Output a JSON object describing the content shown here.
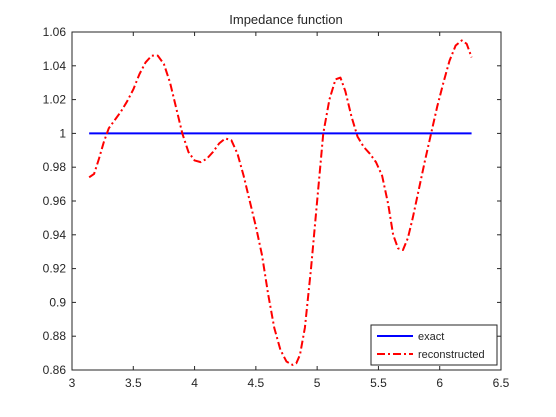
{
  "chart_data": {
    "type": "line",
    "title": "Impedance function",
    "xlabel": "",
    "ylabel": "",
    "xlim": [
      3,
      6.5
    ],
    "ylim": [
      0.86,
      1.06
    ],
    "xticks": [
      3,
      3.5,
      4,
      4.5,
      5,
      5.5,
      6,
      6.5
    ],
    "yticks": [
      0.86,
      0.88,
      0.9,
      0.92,
      0.94,
      0.96,
      0.98,
      1,
      1.02,
      1.04,
      1.06
    ],
    "xtick_labels": [
      "3",
      "3.5",
      "4",
      "4.5",
      "5",
      "5.5",
      "6",
      "6.5"
    ],
    "ytick_labels": [
      "0.86",
      "0.88",
      "0.9",
      "0.92",
      "0.94",
      "0.96",
      "0.98",
      "1",
      "1.02",
      "1.04",
      "1.06"
    ],
    "grid": false,
    "legend_position": "bottom-right",
    "series": [
      {
        "name": "exact",
        "color": "#0000ff",
        "style": "solid",
        "x": [
          3.14,
          6.26
        ],
        "y": [
          1.0,
          1.0
        ]
      },
      {
        "name": "reconstructed",
        "color": "#ff0000",
        "style": "dashdot",
        "x": [
          3.14,
          3.18,
          3.22,
          3.26,
          3.3,
          3.35,
          3.4,
          3.45,
          3.5,
          3.55,
          3.6,
          3.65,
          3.7,
          3.75,
          3.8,
          3.85,
          3.9,
          3.95,
          4.0,
          4.05,
          4.1,
          4.15,
          4.2,
          4.25,
          4.3,
          4.35,
          4.4,
          4.45,
          4.5,
          4.55,
          4.6,
          4.65,
          4.7,
          4.75,
          4.8,
          4.83,
          4.86,
          4.9,
          4.95,
          5.0,
          5.05,
          5.1,
          5.15,
          5.19,
          5.23,
          5.28,
          5.33,
          5.38,
          5.43,
          5.48,
          5.53,
          5.58,
          5.62,
          5.66,
          5.7,
          5.74,
          5.78,
          5.83,
          5.88,
          5.93,
          5.98,
          6.03,
          6.08,
          6.13,
          6.18,
          6.22,
          6.26
        ],
        "y": [
          0.974,
          0.976,
          0.985,
          0.995,
          1.003,
          1.008,
          1.013,
          1.019,
          1.026,
          1.035,
          1.042,
          1.046,
          1.046,
          1.041,
          1.03,
          1.015,
          1.0,
          0.989,
          0.984,
          0.983,
          0.985,
          0.989,
          0.994,
          0.997,
          0.996,
          0.988,
          0.975,
          0.96,
          0.945,
          0.928,
          0.905,
          0.885,
          0.872,
          0.865,
          0.863,
          0.864,
          0.869,
          0.885,
          0.92,
          0.96,
          1.0,
          1.02,
          1.032,
          1.033,
          1.025,
          1.01,
          0.998,
          0.992,
          0.988,
          0.983,
          0.975,
          0.958,
          0.94,
          0.932,
          0.931,
          0.938,
          0.95,
          0.967,
          0.984,
          1.0,
          1.016,
          1.03,
          1.043,
          1.052,
          1.055,
          1.053,
          1.045
        ]
      }
    ]
  }
}
